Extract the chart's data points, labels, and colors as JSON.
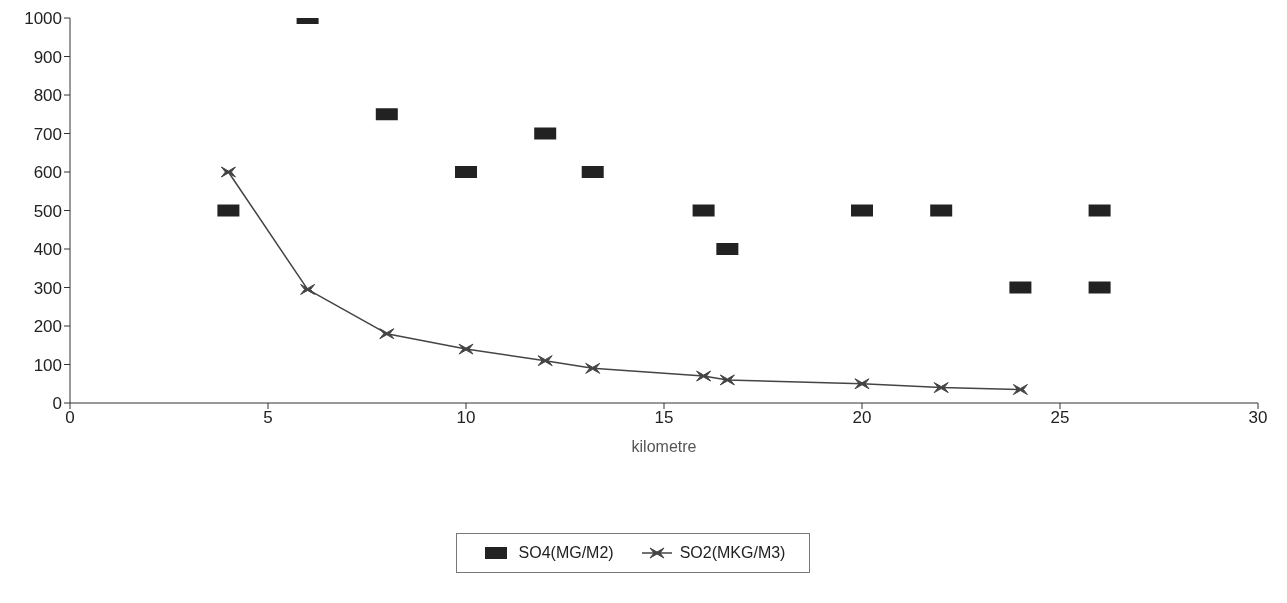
{
  "chart_data": {
    "type": "line",
    "xlabel": "kilometre",
    "xlim": [
      0,
      30
    ],
    "xticks": [
      0,
      5,
      10,
      15,
      20,
      25,
      30
    ],
    "ylim": [
      0,
      1000
    ],
    "yticks": [
      0,
      100,
      200,
      300,
      400,
      500,
      600,
      700,
      800,
      900,
      1000
    ],
    "grid": false,
    "legend": "bottom",
    "series": [
      {
        "name": "SO4(MG/M2)",
        "type": "scatter",
        "marker": "square",
        "color": "#222222",
        "x": [
          4,
          6,
          8,
          10,
          12,
          13.2,
          16,
          16.6,
          20,
          22,
          24,
          26,
          26
        ],
        "values": [
          500,
          1000,
          750,
          600,
          700,
          600,
          500,
          400,
          500,
          500,
          300,
          300,
          500
        ]
      },
      {
        "name": "SO2(MKG/M3)",
        "type": "line",
        "marker": "cross",
        "color": "#444444",
        "x": [
          4,
          6,
          8,
          10,
          12,
          13.2,
          16,
          16.6,
          20,
          22,
          24
        ],
        "values": [
          600,
          295,
          180,
          140,
          110,
          90,
          70,
          60,
          50,
          40,
          35
        ]
      }
    ]
  }
}
